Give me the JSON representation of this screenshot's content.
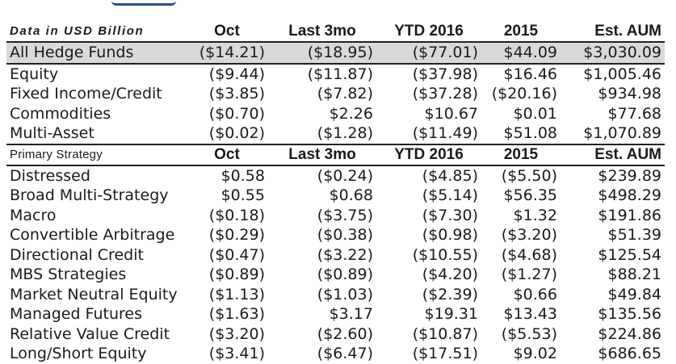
{
  "top_section": {
    "header": {
      "label": "Data in USD Billion",
      "columns": [
        "Oct",
        "Last 3mo",
        "YTD 2016",
        "2015",
        "Est. AUM"
      ]
    },
    "total_row": {
      "name": "All Hedge Funds",
      "values": [
        "($14.21)",
        "($18.95)",
        "($77.01)",
        "$44.09",
        "$3,030.09"
      ]
    },
    "rows": [
      {
        "name": "Equity",
        "values": [
          "($9.44)",
          "($11.87)",
          "($37.98)",
          "$16.46",
          "$1,005.46"
        ]
      },
      {
        "name": "Fixed Income/Credit",
        "values": [
          "($3.85)",
          "($7.82)",
          "($37.28)",
          "($20.16)",
          "$934.98"
        ]
      },
      {
        "name": "Commodities",
        "values": [
          "($0.70)",
          "$2.26",
          "$10.67",
          "$0.01",
          "$77.68"
        ]
      },
      {
        "name": "Multi-Asset",
        "values": [
          "($0.02)",
          "($1.28)",
          "($11.49)",
          "$51.08",
          "$1,070.89"
        ]
      }
    ]
  },
  "strategy_section": {
    "header": {
      "label": "Primary Strategy",
      "columns": [
        "Oct",
        "Last 3mo",
        "YTD 2016",
        "2015",
        "Est. AUM"
      ]
    },
    "rows": [
      {
        "name": "Distressed",
        "values": [
          "$0.58",
          "($0.24)",
          "($4.85)",
          "($5.50)",
          "$239.89"
        ]
      },
      {
        "name": "Broad Multi-Strategy",
        "values": [
          "$0.55",
          "$0.68",
          "($5.14)",
          "$56.35",
          "$498.29"
        ]
      },
      {
        "name": "Macro",
        "values": [
          "($0.18)",
          "($3.75)",
          "($7.30)",
          "$1.32",
          "$191.86"
        ]
      },
      {
        "name": "Convertible Arbitrage",
        "values": [
          "($0.29)",
          "($0.38)",
          "($0.98)",
          "($3.20)",
          "$51.39"
        ]
      },
      {
        "name": "Directional Credit",
        "values": [
          "($0.47)",
          "($3.22)",
          "($10.55)",
          "($4.68)",
          "$125.54"
        ]
      },
      {
        "name": "MBS Strategies",
        "values": [
          "($0.89)",
          "($0.89)",
          "($4.20)",
          "($1.27)",
          "$88.21"
        ]
      },
      {
        "name": "Market Neutral Equity",
        "values": [
          "($1.13)",
          "($1.03)",
          "($2.39)",
          "$0.66",
          "$49.84"
        ]
      },
      {
        "name": "Managed Futures",
        "values": [
          "($1.63)",
          "$3.17",
          "$19.31",
          "$13.43",
          "$135.56"
        ]
      },
      {
        "name": "Relative Value Credit",
        "values": [
          "($3.20)",
          "($2.60)",
          "($10.87)",
          "($5.53)",
          "$224.86"
        ]
      },
      {
        "name": "Long/Short Equity",
        "values": [
          "($3.41)",
          "($6.47)",
          "($17.51)",
          "$9.02",
          "$686.65"
        ]
      }
    ]
  },
  "colors": {
    "total_row_bg": "#d9d9d9",
    "rule": "#222222",
    "title_fragment": "#2c4f8a"
  }
}
